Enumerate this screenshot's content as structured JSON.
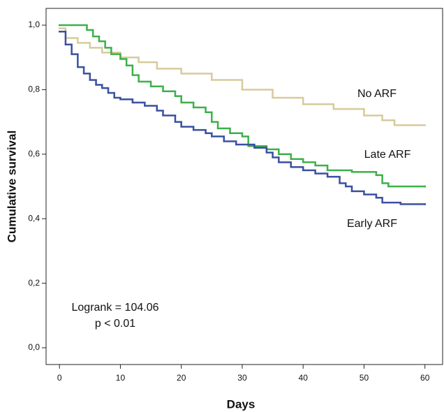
{
  "chart_data": {
    "type": "step",
    "x_label": "Days",
    "y_label": "Cumulative survival",
    "annotations": [
      "Logrank = 104.06",
      "p < 0.01"
    ],
    "xlim": [
      -2.2,
      62.9
    ],
    "ylim": [
      -0.052,
      1.052
    ],
    "xticks": [
      0,
      10,
      20,
      30,
      40,
      50,
      60
    ],
    "yticks": [
      {
        "value": 0,
        "label": "0,0"
      },
      {
        "value": 0.2,
        "label": "0,2"
      },
      {
        "value": 0.4,
        "label": "0,4"
      },
      {
        "value": 0.6,
        "label": "0,6"
      },
      {
        "value": 0.8,
        "label": "0,8"
      },
      {
        "value": 1,
        "label": "1,0"
      }
    ],
    "series": [
      {
        "name": "No ARF",
        "color": "#d6cb9c",
        "x": [
          0,
          1,
          3,
          5,
          7,
          10,
          13,
          16,
          20,
          25,
          30,
          35,
          40,
          45,
          50,
          53,
          55,
          60
        ],
        "values": [
          0.99,
          0.96,
          0.945,
          0.93,
          0.915,
          0.9,
          0.885,
          0.865,
          0.85,
          0.83,
          0.8,
          0.775,
          0.755,
          0.74,
          0.72,
          0.705,
          0.69,
          0.69
        ]
      },
      {
        "name": "Late ARF",
        "color": "#3db04a",
        "x": [
          0,
          4.5,
          5.5,
          6.5,
          7.5,
          8.5,
          10,
          11,
          12,
          13,
          15,
          17,
          19,
          20,
          22,
          24,
          25,
          26,
          28,
          30,
          31,
          34,
          36,
          38,
          40,
          42,
          44,
          48,
          52,
          53,
          54,
          60
        ],
        "values": [
          1.0,
          0.985,
          0.965,
          0.95,
          0.93,
          0.91,
          0.895,
          0.875,
          0.845,
          0.825,
          0.81,
          0.795,
          0.78,
          0.76,
          0.745,
          0.73,
          0.7,
          0.68,
          0.665,
          0.655,
          0.625,
          0.615,
          0.6,
          0.585,
          0.575,
          0.565,
          0.55,
          0.545,
          0.535,
          0.51,
          0.5,
          0.5
        ]
      },
      {
        "name": "Early ARF",
        "color": "#3a50a0",
        "x": [
          0,
          1,
          2,
          3,
          4,
          5,
          6,
          7,
          8,
          9,
          10,
          12,
          14,
          16,
          17,
          19,
          20,
          22,
          24,
          25,
          27,
          29,
          32,
          34,
          35,
          36,
          38,
          40,
          42,
          44,
          46,
          47,
          48,
          50,
          52,
          53,
          56,
          60
        ],
        "values": [
          0.98,
          0.94,
          0.91,
          0.87,
          0.85,
          0.83,
          0.815,
          0.805,
          0.79,
          0.775,
          0.77,
          0.76,
          0.75,
          0.735,
          0.72,
          0.7,
          0.685,
          0.675,
          0.665,
          0.655,
          0.64,
          0.63,
          0.62,
          0.605,
          0.59,
          0.575,
          0.56,
          0.55,
          0.54,
          0.53,
          0.51,
          0.5,
          0.485,
          0.475,
          0.465,
          0.45,
          0.445,
          0.445
        ]
      }
    ]
  }
}
